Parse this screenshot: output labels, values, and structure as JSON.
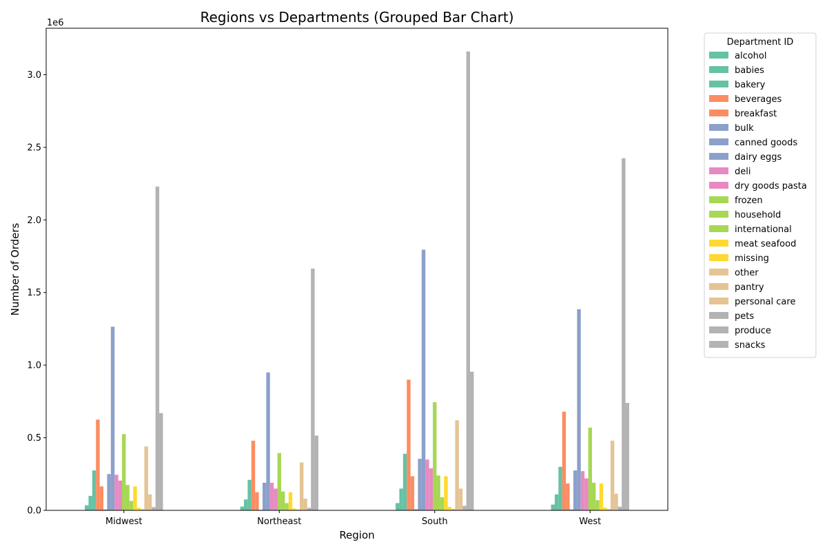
{
  "chart_data": {
    "type": "bar",
    "title": "Regions vs Departments (Grouped Bar Chart)",
    "xlabel": "Region",
    "ylabel": "Number of Orders",
    "y_offset_text": "1e6",
    "ylim": [
      0,
      3.32
    ],
    "y_unit_multiplier": 1000000,
    "y_ticks": [
      "0.0",
      "0.5",
      "1.0",
      "1.5",
      "2.0",
      "2.5",
      "3.0"
    ],
    "categories": [
      "Midwest",
      "Northeast",
      "South",
      "West"
    ],
    "legend": {
      "title": "Department ID",
      "placement": "outside right"
    },
    "grid": false,
    "series": [
      {
        "name": "alcohol",
        "color": "#66c2a5",
        "values": [
          0.035,
          0.026,
          0.05,
          0.04
        ]
      },
      {
        "name": "babies",
        "color": "#66c2a5",
        "values": [
          0.1,
          0.075,
          0.15,
          0.11
        ]
      },
      {
        "name": "bakery",
        "color": "#66c2a5",
        "values": [
          0.275,
          0.21,
          0.39,
          0.3
        ]
      },
      {
        "name": "beverages",
        "color": "#fc8d62",
        "values": [
          0.625,
          0.48,
          0.9,
          0.68
        ]
      },
      {
        "name": "breakfast",
        "color": "#fc8d62",
        "values": [
          0.165,
          0.125,
          0.235,
          0.185
        ]
      },
      {
        "name": "bulk",
        "color": "#8da0cb",
        "values": [
          0.006,
          0.004,
          0.008,
          0.006
        ]
      },
      {
        "name": "canned goods",
        "color": "#8da0cb",
        "values": [
          0.25,
          0.19,
          0.355,
          0.275
        ]
      },
      {
        "name": "dairy eggs",
        "color": "#8da0cb",
        "values": [
          1.265,
          0.95,
          1.795,
          1.385
        ]
      },
      {
        "name": "deli",
        "color": "#e78ac3",
        "values": [
          0.245,
          0.19,
          0.35,
          0.27
        ]
      },
      {
        "name": "dry goods pasta",
        "color": "#e78ac3",
        "values": [
          0.205,
          0.15,
          0.29,
          0.22
        ]
      },
      {
        "name": "frozen",
        "color": "#a6d854",
        "values": [
          0.525,
          0.395,
          0.745,
          0.57
        ]
      },
      {
        "name": "household",
        "color": "#a6d854",
        "values": [
          0.175,
          0.13,
          0.24,
          0.19
        ]
      },
      {
        "name": "international",
        "color": "#a6d854",
        "values": [
          0.065,
          0.05,
          0.09,
          0.07
        ]
      },
      {
        "name": "meat seafood",
        "color": "#ffd92f",
        "values": [
          0.165,
          0.125,
          0.235,
          0.185
        ]
      },
      {
        "name": "missing",
        "color": "#ffd92f",
        "values": [
          0.017,
          0.013,
          0.024,
          0.019
        ]
      },
      {
        "name": "other",
        "color": "#e5c494",
        "values": [
          0.008,
          0.006,
          0.011,
          0.009
        ]
      },
      {
        "name": "pantry",
        "color": "#e5c494",
        "values": [
          0.44,
          0.33,
          0.62,
          0.48
        ]
      },
      {
        "name": "personal care",
        "color": "#e5c494",
        "values": [
          0.11,
          0.08,
          0.15,
          0.115
        ]
      },
      {
        "name": "pets",
        "color": "#b3b3b3",
        "values": [
          0.022,
          0.017,
          0.031,
          0.025
        ]
      },
      {
        "name": "produce",
        "color": "#b3b3b3",
        "values": [
          2.23,
          1.665,
          3.16,
          2.425
        ]
      },
      {
        "name": "snacks",
        "color": "#b3b3b3",
        "values": [
          0.67,
          0.515,
          0.955,
          0.74
        ]
      }
    ]
  }
}
